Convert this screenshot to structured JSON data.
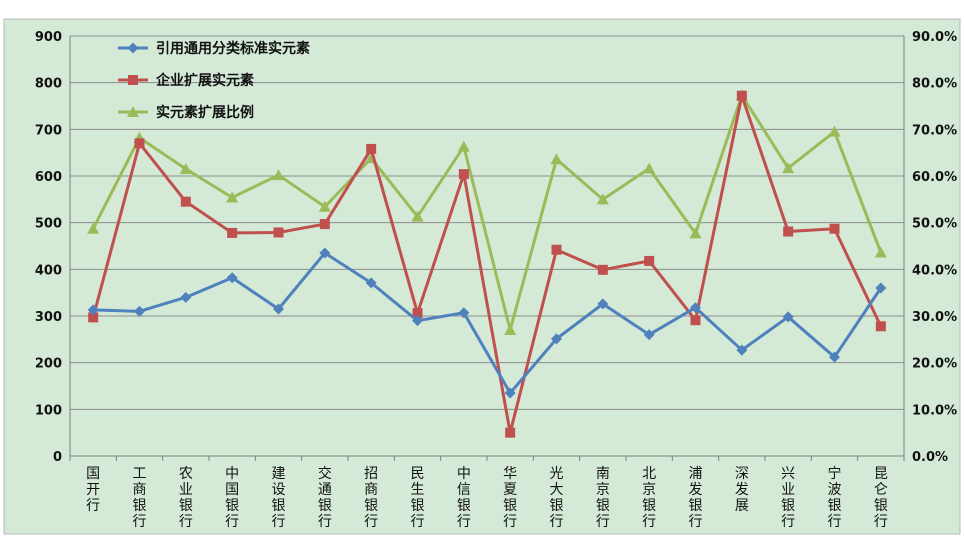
{
  "chart_data": {
    "type": "line",
    "categories": [
      "国开行",
      "工商银行",
      "农业银行",
      "中国银行",
      "建设银行",
      "交通银行",
      "招商银行",
      "民生银行",
      "中信银行",
      "华夏银行",
      "光大银行",
      "南京银行",
      "北京银行",
      "浦发银行",
      "深发展",
      "兴业银行",
      "宁波银行",
      "昆仑银行"
    ],
    "y_left": {
      "min": 0,
      "max": 900,
      "step": 100,
      "ticks": [
        "0",
        "100",
        "200",
        "300",
        "400",
        "500",
        "600",
        "700",
        "800",
        "900"
      ]
    },
    "y_right": {
      "min": 0,
      "max": 0.9,
      "step": 0.1,
      "ticks": [
        "0.0%",
        "10.0%",
        "20.0%",
        "30.0%",
        "40.0%",
        "50.0%",
        "60.0%",
        "70.0%",
        "80.0%",
        "90.0%"
      ]
    },
    "grid": true,
    "legend_position": "top-left",
    "series": [
      {
        "name": "引用通用分类标准实元素",
        "axis": "left",
        "color": "#4F81BD",
        "marker": "diamond",
        "values": [
          313,
          310,
          340,
          382,
          315,
          435,
          371,
          290,
          307,
          135,
          251,
          326,
          260,
          318,
          227,
          298,
          212,
          360
        ]
      },
      {
        "name": "企业扩展实元素",
        "axis": "left",
        "color": "#C0504D",
        "marker": "square",
        "values": [
          297,
          670,
          545,
          478,
          479,
          497,
          658,
          306,
          604,
          50,
          442,
          399,
          418,
          291,
          772,
          481,
          487,
          278
        ]
      },
      {
        "name": "实元素扩展比例",
        "axis": "right",
        "color": "#9BBB59",
        "marker": "triangle",
        "values": [
          0.487,
          0.682,
          0.615,
          0.554,
          0.602,
          0.534,
          0.638,
          0.513,
          0.663,
          0.27,
          0.636,
          0.55,
          0.616,
          0.477,
          0.773,
          0.617,
          0.695,
          0.436
        ]
      }
    ]
  }
}
